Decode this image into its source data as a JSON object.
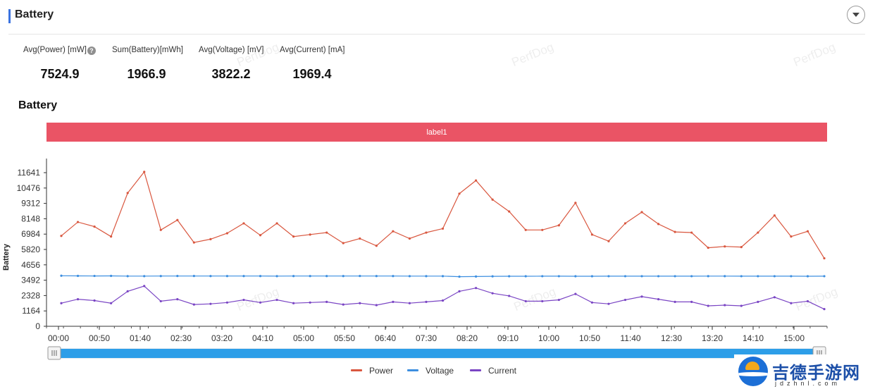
{
  "header": {
    "title": "Battery"
  },
  "stats": [
    {
      "label": "Avg(Power) [mW]",
      "value": "7524.9",
      "help": true
    },
    {
      "label": "Sum(Battery)[mWh]",
      "value": "1966.9",
      "help": false
    },
    {
      "label": "Avg(Voltage) [mV]",
      "value": "3822.2",
      "help": false
    },
    {
      "label": "Avg(Current) [mA]",
      "value": "1969.4",
      "help": false
    }
  ],
  "section_title": "Battery",
  "banner": {
    "label": "label1",
    "color": "#ea5465"
  },
  "watermark": "PerfDog",
  "colors": {
    "power": "#d9573f",
    "voltage": "#3d8fe0",
    "current": "#7a45c4",
    "accent": "#3b73e0",
    "slider": "#2d9ee8"
  },
  "brand": {
    "name": "吉德手游网",
    "url": "jdzhnl.com"
  },
  "chart_data": {
    "type": "line",
    "ylabel": "Battery",
    "yticks": [
      0,
      1164,
      2328,
      3492,
      4656,
      5820,
      6984,
      8148,
      9312,
      10476,
      11641
    ],
    "ylim": [
      0,
      11641
    ],
    "xticks": [
      "00:00",
      "00:50",
      "01:40",
      "02:30",
      "03:20",
      "04:10",
      "05:00",
      "05:50",
      "06:40",
      "07:30",
      "08:20",
      "09:10",
      "10:00",
      "10:50",
      "11:40",
      "12:30",
      "13:20",
      "14:10",
      "15:00"
    ],
    "legend": "bottom-center",
    "series": [
      {
        "name": "Power",
        "color": "#d9573f",
        "values": [
          6850,
          7900,
          7550,
          6800,
          10100,
          11700,
          7300,
          8050,
          6350,
          6600,
          7050,
          7800,
          6900,
          7800,
          6800,
          6950,
          7100,
          6300,
          6650,
          6100,
          7200,
          6650,
          7100,
          7400,
          10050,
          11050,
          9600,
          8700,
          7300,
          7300,
          7650,
          9350,
          6950,
          6450,
          7800,
          8650,
          7750,
          7150,
          7100,
          5950,
          6050,
          6000,
          7100,
          8400,
          6800,
          7200,
          5150
        ]
      },
      {
        "name": "Voltage",
        "color": "#3d8fe0",
        "values": [
          3830,
          3820,
          3815,
          3820,
          3800,
          3800,
          3805,
          3810,
          3810,
          3805,
          3805,
          3805,
          3805,
          3800,
          3805,
          3805,
          3805,
          3805,
          3810,
          3805,
          3805,
          3800,
          3800,
          3800,
          3760,
          3770,
          3785,
          3790,
          3790,
          3795,
          3795,
          3790,
          3790,
          3795,
          3795,
          3795,
          3795,
          3795,
          3795,
          3800,
          3800,
          3795,
          3795,
          3795,
          3795,
          3790,
          3795
        ]
      },
      {
        "name": "Current",
        "color": "#7a45c4",
        "values": [
          1750,
          2050,
          1950,
          1750,
          2650,
          3050,
          1900,
          2050,
          1650,
          1700,
          1800,
          2000,
          1800,
          2000,
          1750,
          1800,
          1850,
          1650,
          1750,
          1600,
          1850,
          1750,
          1850,
          1950,
          2650,
          2900,
          2500,
          2300,
          1900,
          1900,
          2000,
          2450,
          1800,
          1700,
          2000,
          2250,
          2050,
          1850,
          1850,
          1550,
          1600,
          1550,
          1850,
          2200,
          1750,
          1900,
          1300
        ]
      }
    ]
  }
}
